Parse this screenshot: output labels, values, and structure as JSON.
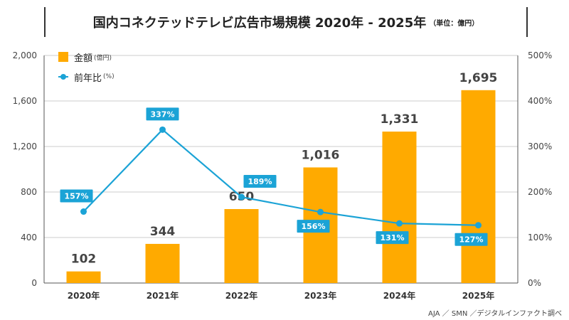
{
  "title": {
    "main": "国内コネクテッドテレビ広告市場規模 2020年 - 2025年",
    "unit": "（単位：億円）"
  },
  "legend": {
    "bar_label": "金額",
    "bar_unit": "(億円)",
    "line_label": "前年比",
    "line_unit": "(%)"
  },
  "source": "AJA ／ SMN ／デジタルインファクト調べ",
  "colors": {
    "bar": "#FFAA00",
    "line": "#1BA3D6",
    "grid": "#CCCCCC",
    "axis": "#555555"
  },
  "chart_data": {
    "type": "bar",
    "categories": [
      "2020年",
      "2021年",
      "2022年",
      "2023年",
      "2024年",
      "2025年"
    ],
    "series": [
      {
        "name": "金額",
        "type": "bar",
        "axis": "left",
        "values": [
          102,
          344,
          650,
          1016,
          1331,
          1695
        ],
        "labels": [
          "102",
          "344",
          "650",
          "1,016",
          "1,331",
          "1,695"
        ]
      },
      {
        "name": "前年比",
        "type": "line",
        "axis": "right",
        "values": [
          157,
          337,
          189,
          156,
          131,
          127
        ],
        "labels": [
          "157%",
          "337%",
          "189%",
          "156%",
          "131%",
          "127%"
        ]
      }
    ],
    "y_left": {
      "ylim": [
        0,
        2000
      ],
      "ticks": [
        0,
        400,
        800,
        1200,
        1600,
        2000
      ],
      "tick_labels": [
        "0",
        "400",
        "800",
        "1,200",
        "1,600",
        "2,000"
      ]
    },
    "y_right": {
      "ylim": [
        0,
        500
      ],
      "ticks": [
        0,
        100,
        200,
        300,
        400,
        500
      ],
      "tick_labels": [
        "0%",
        "100%",
        "200%",
        "300%",
        "400%",
        "500%"
      ]
    },
    "grid": true
  }
}
